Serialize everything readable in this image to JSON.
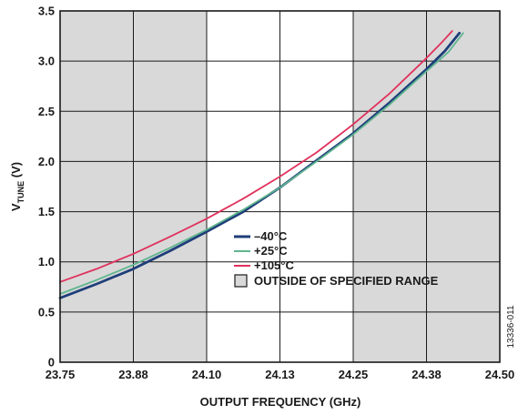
{
  "chart_data": {
    "type": "line",
    "xlabel": "OUTPUT FREQUENCY (GHz)",
    "ylabel": {
      "main": "V",
      "subscript": "TUNE",
      "unit": " (V)"
    },
    "x_tick_labels": [
      "23.75",
      "23.88",
      "24.10",
      "24.13",
      "24.25",
      "24.38",
      "24.50"
    ],
    "y_ticks": [
      "0",
      "0.5",
      "1.0",
      "1.5",
      "2.0",
      "2.5",
      "3.0",
      "3.5"
    ],
    "ylim": [
      0,
      3.5
    ],
    "grid": true,
    "legend_position": "center",
    "outside_specified_range": {
      "label": "OUTSIDE OF SPECIFIED RANGE",
      "shaded_x_intervals": [
        [
          0,
          2
        ],
        [
          4,
          6
        ]
      ],
      "color": "#d9d9d9"
    },
    "series": [
      {
        "name": "–40°C",
        "color": "#1f3e7a",
        "points": [
          [
            0,
            0.64
          ],
          [
            0.5,
            0.78
          ],
          [
            1.0,
            0.93
          ],
          [
            1.5,
            1.11
          ],
          [
            2.0,
            1.3
          ],
          [
            2.5,
            1.5
          ],
          [
            3.0,
            1.74
          ],
          [
            3.5,
            2.01
          ],
          [
            4.0,
            2.28
          ],
          [
            4.5,
            2.59
          ],
          [
            5.0,
            2.92
          ],
          [
            5.25,
            3.1
          ],
          [
            5.45,
            3.28
          ]
        ]
      },
      {
        "name": "+25°C",
        "color": "#5fb58f",
        "points": [
          [
            0,
            0.68
          ],
          [
            0.5,
            0.82
          ],
          [
            1.0,
            0.97
          ],
          [
            1.5,
            1.14
          ],
          [
            2.0,
            1.32
          ],
          [
            2.5,
            1.52
          ],
          [
            3.0,
            1.74
          ],
          [
            3.5,
            2.0
          ],
          [
            4.0,
            2.27
          ],
          [
            4.5,
            2.57
          ],
          [
            5.0,
            2.9
          ],
          [
            5.3,
            3.09
          ],
          [
            5.5,
            3.28
          ]
        ]
      },
      {
        "name": "+105°C",
        "color": "#e0315c",
        "points": [
          [
            0,
            0.8
          ],
          [
            0.5,
            0.93
          ],
          [
            1.0,
            1.08
          ],
          [
            1.5,
            1.25
          ],
          [
            2.0,
            1.43
          ],
          [
            2.5,
            1.63
          ],
          [
            3.0,
            1.85
          ],
          [
            3.5,
            2.09
          ],
          [
            4.0,
            2.37
          ],
          [
            4.5,
            2.68
          ],
          [
            5.0,
            3.03
          ],
          [
            5.2,
            3.18
          ],
          [
            5.35,
            3.3
          ]
        ]
      }
    ]
  },
  "figure_id": "13336-011"
}
